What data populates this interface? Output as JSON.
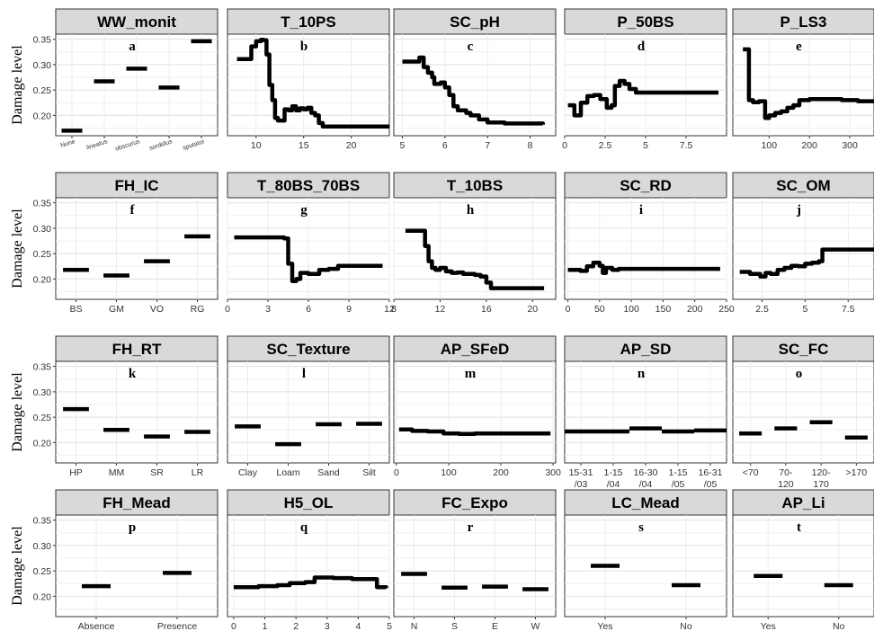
{
  "chart_data": {
    "type": "line",
    "ylabel": "Damage level",
    "yticks": [
      0.2,
      0.25,
      0.3,
      0.35
    ],
    "ylim": [
      0.16,
      0.36
    ],
    "panels": [
      {
        "title": "WW_monit",
        "letter": "a",
        "type": "categorical",
        "categories": [
          "None",
          "lineatus",
          "obscurus",
          "sordidus",
          "sputator"
        ],
        "values": [
          0.17,
          0.267,
          0.292,
          0.255,
          0.346
        ],
        "rotated": true
      },
      {
        "title": "T_10PS",
        "letter": "b",
        "type": "line",
        "xlim": [
          7,
          24
        ],
        "xticks": [
          10,
          15,
          20
        ],
        "x": [
          8,
          9.2,
          9.5,
          10,
          10.5,
          10.8,
          11.1,
          11.4,
          11.7,
          12,
          12.3,
          12.6,
          13,
          13.4,
          13.8,
          14.2,
          14.6,
          15,
          15.4,
          15.8,
          16.2,
          16.6,
          17,
          24
        ],
        "y": [
          0.311,
          0.311,
          0.336,
          0.346,
          0.349,
          0.348,
          0.32,
          0.26,
          0.23,
          0.195,
          0.19,
          0.19,
          0.212,
          0.21,
          0.218,
          0.21,
          0.214,
          0.212,
          0.215,
          0.205,
          0.2,
          0.185,
          0.178,
          0.178
        ]
      },
      {
        "title": "SC_pH",
        "letter": "c",
        "type": "line",
        "xlim": [
          4.8,
          8.6
        ],
        "xticks": [
          5,
          6,
          7,
          8
        ],
        "x": [
          5,
          5.3,
          5.4,
          5.5,
          5.6,
          5.7,
          5.75,
          5.9,
          6.0,
          6.1,
          6.2,
          6.3,
          6.5,
          6.6,
          6.8,
          7.0,
          7.4,
          7.8,
          8.3
        ],
        "y": [
          0.306,
          0.306,
          0.314,
          0.295,
          0.284,
          0.275,
          0.262,
          0.265,
          0.255,
          0.24,
          0.218,
          0.21,
          0.205,
          0.2,
          0.192,
          0.186,
          0.184,
          0.184,
          0.182
        ]
      },
      {
        "title": "P_50BS",
        "letter": "d",
        "type": "line",
        "xlim": [
          0,
          10
        ],
        "xticks": [
          0,
          2.5,
          5.0,
          7.5
        ],
        "x": [
          0.2,
          0.6,
          1.0,
          1.4,
          1.8,
          2.2,
          2.6,
          2.9,
          3.1,
          3.4,
          3.7,
          4.0,
          4.4,
          9.5
        ],
        "y": [
          0.22,
          0.2,
          0.225,
          0.238,
          0.24,
          0.232,
          0.215,
          0.22,
          0.258,
          0.268,
          0.262,
          0.252,
          0.245,
          0.245
        ]
      },
      {
        "title": "P_LS3",
        "letter": "e",
        "type": "line",
        "xlim": [
          10,
          360
        ],
        "xticks": [
          100,
          200,
          300
        ],
        "x": [
          35,
          45,
          50,
          60,
          75,
          90,
          100,
          115,
          130,
          145,
          160,
          175,
          200,
          240,
          280,
          320,
          360
        ],
        "y": [
          0.33,
          0.33,
          0.23,
          0.226,
          0.228,
          0.195,
          0.2,
          0.205,
          0.208,
          0.215,
          0.22,
          0.23,
          0.232,
          0.232,
          0.23,
          0.228,
          0.228
        ]
      },
      {
        "title": "FH_IC",
        "letter": "f",
        "type": "categorical",
        "categories": [
          "BS",
          "GM",
          "VO",
          "RG"
        ],
        "values": [
          0.218,
          0.207,
          0.235,
          0.284
        ],
        "rotated": false
      },
      {
        "title": "T_80BS_70BS",
        "letter": "g",
        "type": "line",
        "xlim": [
          0,
          12
        ],
        "xticks": [
          0,
          3,
          6,
          9,
          12
        ],
        "x": [
          0.5,
          3.5,
          4.2,
          4.5,
          4.8,
          5.1,
          5.4,
          6.0,
          6.8,
          7.5,
          8.2,
          9.0,
          10.0,
          11.5
        ],
        "y": [
          0.282,
          0.282,
          0.28,
          0.23,
          0.196,
          0.2,
          0.212,
          0.21,
          0.218,
          0.22,
          0.226,
          0.226,
          0.226,
          0.226
        ]
      },
      {
        "title": "T_10BS",
        "letter": "h",
        "type": "line",
        "xlim": [
          8,
          22
        ],
        "xticks": [
          8,
          12,
          16,
          20
        ],
        "x": [
          9,
          10.4,
          10.7,
          11.0,
          11.3,
          11.6,
          12.0,
          12.5,
          13,
          13.5,
          14,
          14.5,
          15,
          15.5,
          16,
          16.4,
          21
        ],
        "y": [
          0.295,
          0.295,
          0.265,
          0.235,
          0.222,
          0.218,
          0.222,
          0.215,
          0.212,
          0.213,
          0.21,
          0.21,
          0.208,
          0.205,
          0.193,
          0.182,
          0.182
        ]
      },
      {
        "title": "SC_RD",
        "letter": "i",
        "type": "line",
        "xlim": [
          -5,
          250
        ],
        "xticks": [
          0,
          50,
          100,
          150,
          200,
          250
        ],
        "x": [
          0,
          20,
          30,
          40,
          50,
          55,
          60,
          70,
          80,
          100,
          240
        ],
        "y": [
          0.218,
          0.216,
          0.225,
          0.232,
          0.226,
          0.212,
          0.222,
          0.218,
          0.22,
          0.22,
          0.22
        ]
      },
      {
        "title": "SC_OM",
        "letter": "j",
        "type": "line",
        "xlim": [
          0.8,
          9
        ],
        "xticks": [
          2.5,
          5.0,
          7.5
        ],
        "x": [
          1.2,
          1.8,
          2.4,
          2.7,
          3.0,
          3.4,
          3.8,
          4.2,
          4.6,
          5.0,
          5.4,
          5.8,
          6.0,
          9
        ],
        "y": [
          0.214,
          0.21,
          0.205,
          0.212,
          0.21,
          0.218,
          0.222,
          0.226,
          0.225,
          0.23,
          0.232,
          0.235,
          0.258,
          0.258
        ]
      },
      {
        "title": "FH_RT",
        "letter": "k",
        "type": "categorical",
        "categories": [
          "HP",
          "MM",
          "SR",
          "LR"
        ],
        "values": [
          0.266,
          0.225,
          0.212,
          0.221
        ],
        "rotated": false
      },
      {
        "title": "SC_Texture",
        "letter": "l",
        "type": "categorical",
        "categories": [
          "Clay",
          "Loam",
          "Sand",
          "Silt"
        ],
        "values": [
          0.232,
          0.197,
          0.236,
          0.237
        ],
        "rotated": false
      },
      {
        "title": "AP_SFeD",
        "letter": "m",
        "type": "line",
        "xlim": [
          -5,
          305
        ],
        "xticks": [
          0,
          100,
          200,
          300
        ],
        "x": [
          5,
          30,
          60,
          90,
          120,
          150,
          200,
          295
        ],
        "y": [
          0.226,
          0.223,
          0.222,
          0.218,
          0.217,
          0.218,
          0.218,
          0.218
        ]
      },
      {
        "title": "AP_SD",
        "letter": "n",
        "type": "categorical",
        "categories": [
          "15-31\n/03",
          "1-15\n/04",
          "16-30\n/04",
          "1-15\n/05",
          "16-31\n/05"
        ],
        "values": [
          0.222,
          0.222,
          0.228,
          0.222,
          0.224
        ],
        "rotated": false,
        "wide": true
      },
      {
        "title": "SC_FC",
        "letter": "o",
        "type": "categorical",
        "categories": [
          "<70",
          "70-\n120",
          "120-\n170",
          ">170"
        ],
        "values": [
          0.218,
          0.228,
          0.24,
          0.21
        ],
        "rotated": false
      },
      {
        "title": "FH_Mead",
        "letter": "p",
        "type": "categorical",
        "categories": [
          "Absence",
          "Presence"
        ],
        "values": [
          0.22,
          0.246
        ],
        "rotated": false
      },
      {
        "title": "H5_OL",
        "letter": "q",
        "type": "line",
        "xlim": [
          -0.2,
          5.0
        ],
        "xticks": [
          0,
          1,
          2,
          3,
          4,
          5
        ],
        "x": [
          0,
          0.8,
          1.4,
          1.8,
          2.3,
          2.6,
          3.2,
          3.8,
          4.4,
          4.6,
          4.9
        ],
        "y": [
          0.218,
          0.22,
          0.222,
          0.226,
          0.228,
          0.237,
          0.236,
          0.234,
          0.234,
          0.218,
          0.216
        ]
      },
      {
        "title": "FC_Expo",
        "letter": "r",
        "type": "categorical",
        "categories": [
          "N",
          "S",
          "E",
          "W"
        ],
        "values": [
          0.244,
          0.217,
          0.219,
          0.214
        ],
        "rotated": false
      },
      {
        "title": "LC_Mead",
        "letter": "s",
        "type": "categorical",
        "categories": [
          "Yes",
          "No"
        ],
        "values": [
          0.26,
          0.222
        ],
        "rotated": false
      },
      {
        "title": "AP_Li",
        "letter": "t",
        "type": "categorical",
        "categories": [
          "Yes",
          "No"
        ],
        "values": [
          0.24,
          0.222
        ],
        "rotated": false
      }
    ]
  }
}
